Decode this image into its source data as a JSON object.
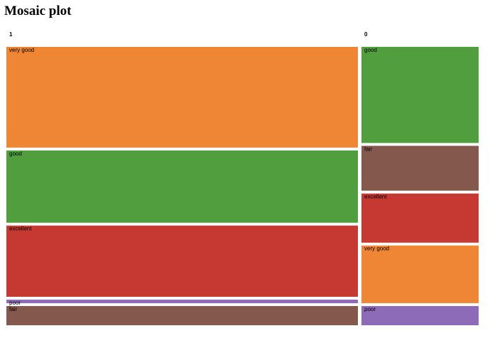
{
  "chart_data": {
    "type": "mosaic",
    "title": "Mosaic plot",
    "columns": [
      {
        "name": "1",
        "segments": [
          {
            "name": "very good",
            "value": 283,
            "color": "#ef8636"
          },
          {
            "name": "good",
            "value": 203,
            "color": "#519e3e"
          },
          {
            "name": "excellent",
            "value": 200,
            "color": "#c53932"
          },
          {
            "name": "poor",
            "value": 10,
            "color": "#8d6bb8"
          },
          {
            "name": "fair",
            "value": 54,
            "color": "#85584e"
          }
        ]
      },
      {
        "name": "0",
        "segments": [
          {
            "name": "good",
            "value": 90,
            "color": "#519e3e"
          },
          {
            "name": "fair",
            "value": 42,
            "color": "#85584e"
          },
          {
            "name": "excellent",
            "value": 46,
            "color": "#c53932"
          },
          {
            "name": "very good",
            "value": 54,
            "color": "#ef8636"
          },
          {
            "name": "poor",
            "value": 18,
            "color": "#8d6bb8"
          }
        ]
      }
    ]
  }
}
